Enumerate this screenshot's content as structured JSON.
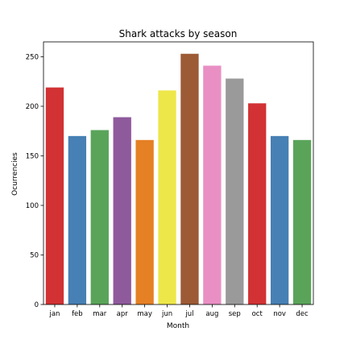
{
  "chart_data": {
    "type": "bar",
    "title": "Shark attacks by season",
    "xlabel": "Month",
    "ylabel": "Ocurrencies",
    "categories": [
      "jan",
      "feb",
      "mar",
      "apr",
      "may",
      "jun",
      "jul",
      "aug",
      "sep",
      "oct",
      "nov",
      "dec"
    ],
    "values": [
      219,
      170,
      176,
      189,
      166,
      216,
      253,
      241,
      228,
      203,
      170,
      166
    ],
    "colors": [
      "#d23234",
      "#4680b4",
      "#5aa45a",
      "#8f5a9c",
      "#e58024",
      "#ede74a",
      "#9c5a35",
      "#e98fc4",
      "#9a9a9a",
      "#d23234",
      "#4680b4",
      "#5aa45a"
    ],
    "ylim": [
      0,
      265
    ],
    "yticks": [
      0,
      50,
      100,
      150,
      200,
      250
    ],
    "grid": false,
    "legend": "none"
  }
}
